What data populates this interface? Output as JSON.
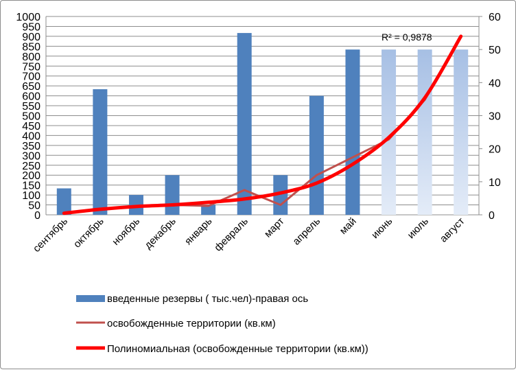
{
  "chart_data": {
    "type": "bar",
    "categories": [
      "сентябрь",
      "октябрь",
      "ноябрь",
      "декабрь",
      "январь",
      "февраль",
      "март",
      "апрель",
      "май",
      "июнь",
      "июль",
      "август"
    ],
    "y_left": {
      "ticks": [
        "1000",
        "950",
        "900",
        "850",
        "800",
        "750",
        "700",
        "650",
        "600",
        "550",
        "500",
        "450",
        "400",
        "350",
        "300",
        "250",
        "200",
        "150",
        "100",
        "50",
        "0"
      ],
      "range": [
        0,
        1000
      ]
    },
    "y_right": {
      "ticks": [
        "60",
        "50",
        "40",
        "30",
        "20",
        "10",
        "0"
      ],
      "range": [
        0,
        60
      ]
    },
    "series": [
      {
        "name": "введенные резервы ( тыс.чел)-правая ось",
        "kind": "bar",
        "axis": "right",
        "values": [
          8,
          38,
          6,
          12,
          3,
          55,
          12,
          36,
          50,
          50,
          50,
          50
        ],
        "forecast_from_index": 9,
        "color": "#4f81bd",
        "forecast_color": "#a6bfe4"
      },
      {
        "name": "освобожденные территории (кв.км)",
        "kind": "line",
        "axis": "left",
        "values": [
          8,
          30,
          45,
          50,
          45,
          125,
          50,
          200,
          290,
          380,
          580,
          900
        ],
        "color": "#c0504d"
      },
      {
        "name": "Полиномиальная (освобожденные территории (кв.км))",
        "kind": "trendline",
        "axis": "left",
        "values": [
          8,
          28,
          42,
          50,
          63,
          80,
          110,
          160,
          255,
          390,
          590,
          900
        ],
        "color": "#ff0000"
      }
    ],
    "annotation": "R² = 0,9878",
    "grid": "horizontal",
    "legend_position": "bottom"
  }
}
